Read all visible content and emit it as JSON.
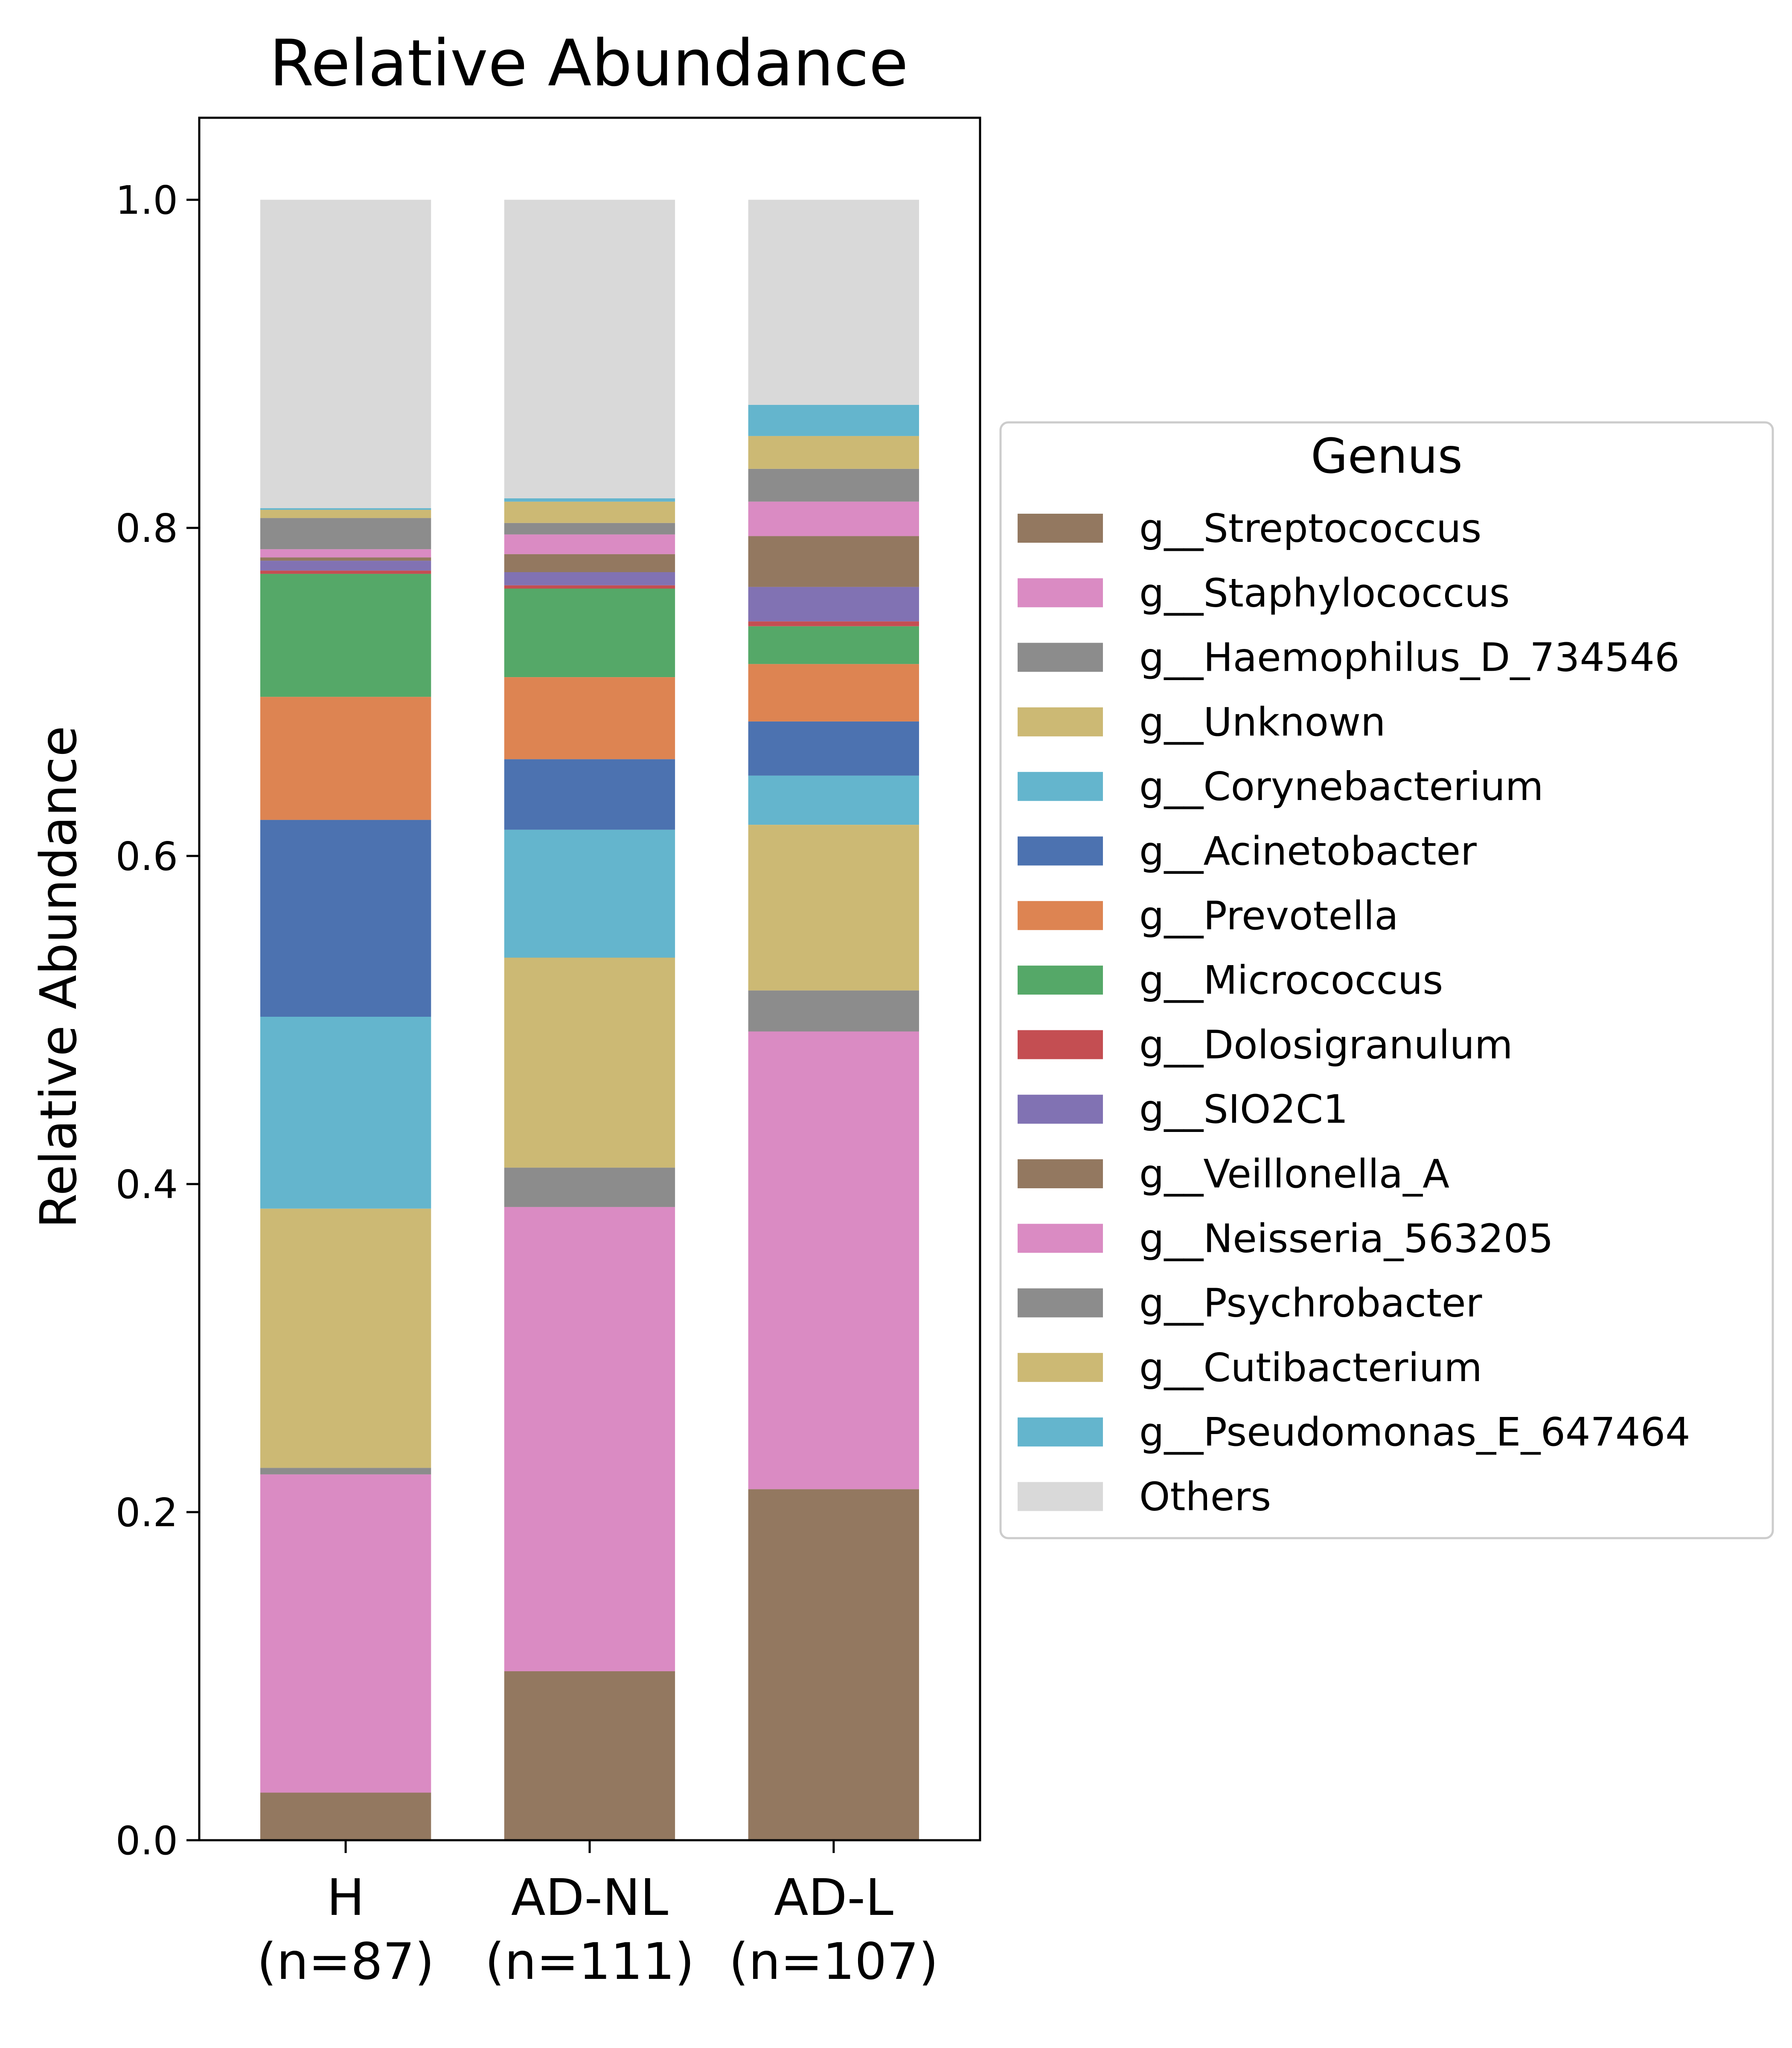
{
  "chart_data": {
    "type": "bar",
    "stacked": true,
    "title": "Relative Abundance",
    "xlabel": "",
    "ylabel": "Relative Abundance",
    "ylim": [
      0,
      1.05
    ],
    "yticks": [
      "0.0",
      "0.2",
      "0.4",
      "0.6",
      "0.8",
      "1.0"
    ],
    "ytick_values": [
      0,
      0.2,
      0.4,
      0.6,
      0.8,
      1.0
    ],
    "grid": false,
    "categories": [
      {
        "name": "H",
        "n_label": "(n=87)"
      },
      {
        "name": "AD-NL",
        "n_label": "(n=111)"
      },
      {
        "name": "AD-L",
        "n_label": "(n=107)"
      }
    ],
    "legend": {
      "title": "Genus",
      "placement": "right"
    },
    "series": [
      {
        "name": "g__Streptococcus",
        "color": "#937860",
        "values": [
          0.029,
          0.103,
          0.214
        ]
      },
      {
        "name": "g__Staphylococcus",
        "color": "#da8bc3",
        "values": [
          0.194,
          0.283,
          0.279
        ]
      },
      {
        "name": "g__Haemophilus_D_734546",
        "color": "#8c8c8c",
        "values": [
          0.004,
          0.024,
          0.025
        ]
      },
      {
        "name": "g__Unknown",
        "color": "#ccb974",
        "values": [
          0.158,
          0.128,
          0.101
        ]
      },
      {
        "name": "g__Corynebacterium",
        "color": "#64b5cd",
        "values": [
          0.117,
          0.078,
          0.03
        ]
      },
      {
        "name": "g__Acinetobacter",
        "color": "#4c72b0",
        "values": [
          0.12,
          0.043,
          0.033
        ]
      },
      {
        "name": "g__Prevotella",
        "color": "#dd8452",
        "values": [
          0.075,
          0.05,
          0.035
        ]
      },
      {
        "name": "g__Micrococcus",
        "color": "#55a868",
        "values": [
          0.075,
          0.054,
          0.023
        ]
      },
      {
        "name": "g__Dolosigranulum",
        "color": "#c44e52",
        "values": [
          0.002,
          0.002,
          0.003
        ]
      },
      {
        "name": "g__SIO2C1",
        "color": "#8172b3",
        "values": [
          0.006,
          0.008,
          0.021
        ]
      },
      {
        "name": "g__Veillonella_A",
        "color": "#937860",
        "values": [
          0.002,
          0.011,
          0.031
        ]
      },
      {
        "name": "g__Neisseria_563205",
        "color": "#da8bc3",
        "values": [
          0.005,
          0.012,
          0.021
        ]
      },
      {
        "name": "g__Psychrobacter",
        "color": "#8c8c8c",
        "values": [
          0.019,
          0.007,
          0.02
        ]
      },
      {
        "name": "g__Cutibacterium",
        "color": "#ccb974",
        "values": [
          0.005,
          0.013,
          0.02
        ]
      },
      {
        "name": "g__Pseudomonas_E_647464",
        "color": "#64b5cd",
        "values": [
          0.001,
          0.002,
          0.019
        ]
      },
      {
        "name": "Others",
        "color": "#d9d9d9",
        "values": [
          0.188,
          0.182,
          0.125
        ]
      }
    ]
  }
}
